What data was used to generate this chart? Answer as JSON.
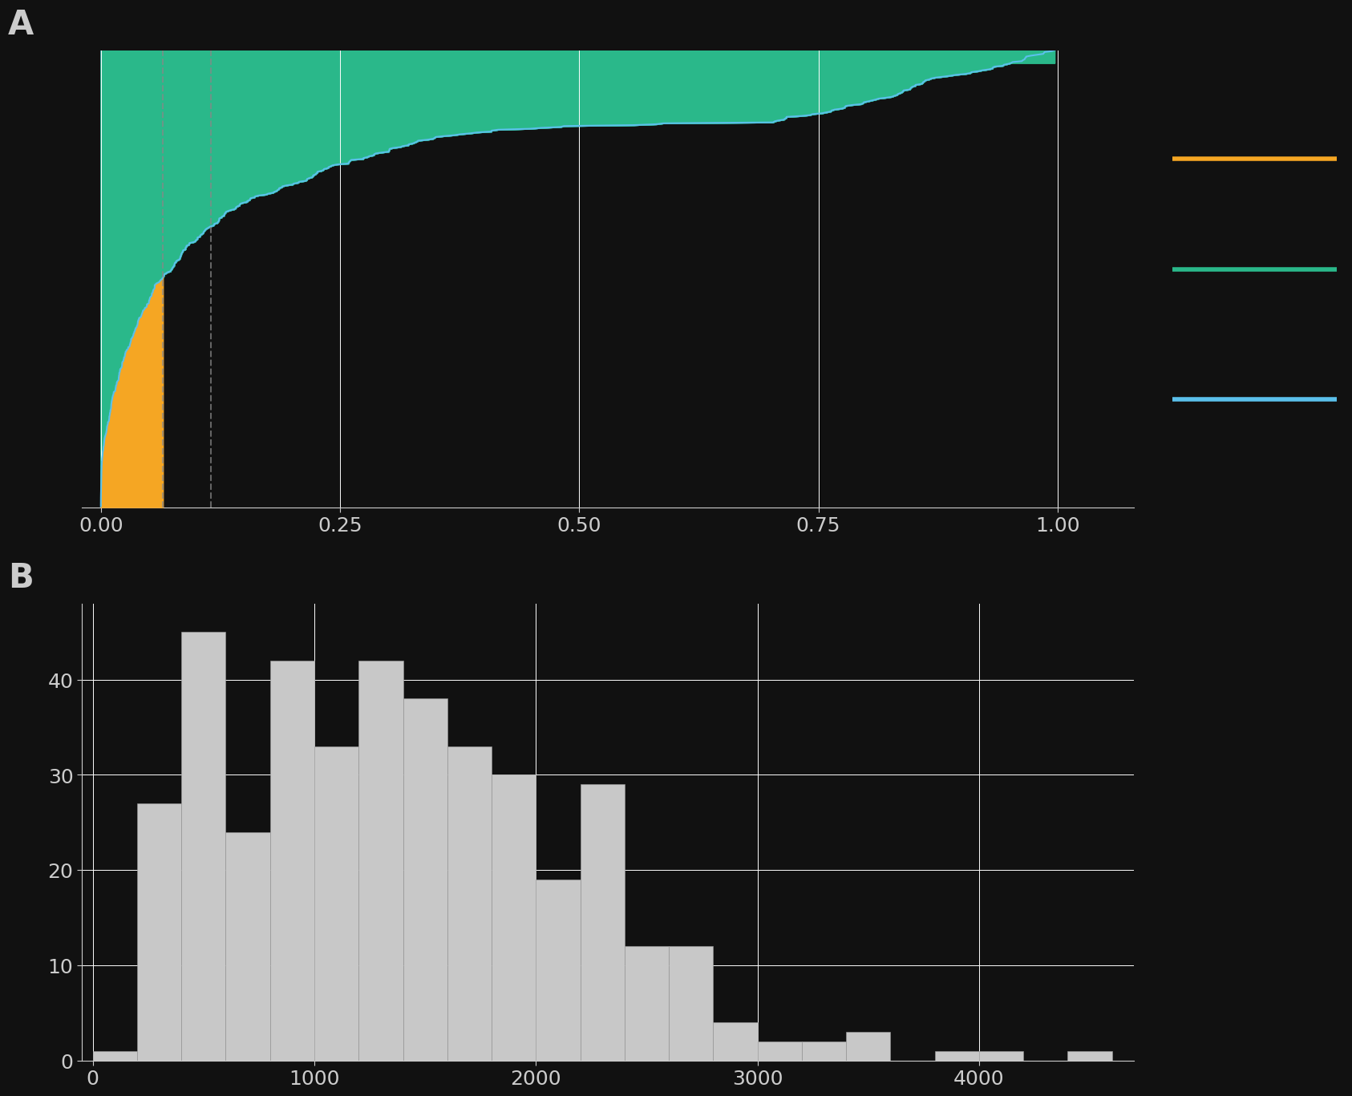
{
  "background_color": "#111111",
  "text_color": "#cccccc",
  "grid_color": "#ffffff",
  "panel_a": {
    "color_orange": "#f5a623",
    "color_green": "#2ab88a",
    "color_blue": "#5bc0eb",
    "vline_color": "#888888",
    "vline1": 0.065,
    "vline2": 0.115,
    "xlim": [
      -0.02,
      1.08
    ],
    "ylim": [
      0,
      1
    ],
    "xticks": [
      0.0,
      0.25,
      0.5,
      0.75,
      1.0
    ]
  },
  "panel_b": {
    "xlim": [
      -50,
      4700
    ],
    "ylim": [
      0,
      48
    ],
    "xticks": [
      0,
      1000,
      2000,
      3000,
      4000
    ],
    "yticks": [
      0,
      10,
      20,
      30,
      40
    ],
    "bar_color": "#c8c8c8",
    "bar_edge_color": "#999999",
    "bin_edges": [
      0,
      200,
      400,
      600,
      800,
      1000,
      1200,
      1400,
      1600,
      1800,
      2000,
      2200,
      2400,
      2600,
      2800,
      3000,
      3200,
      3400,
      3600,
      3800,
      4000,
      4200,
      4400,
      4600
    ],
    "bar_heights": [
      1,
      27,
      45,
      24,
      42,
      33,
      42,
      38,
      33,
      30,
      19,
      29,
      12,
      12,
      4,
      2,
      2,
      3,
      0,
      1,
      1,
      0,
      1
    ]
  }
}
